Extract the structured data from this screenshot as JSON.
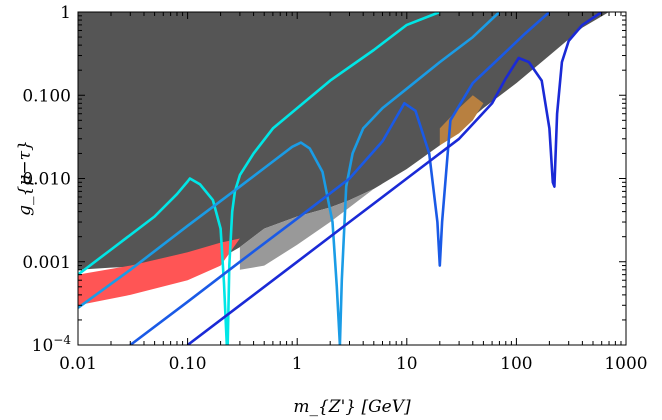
{
  "chart_data": {
    "type": "line",
    "title": "",
    "xlabel": "m_{Z'} [GeV]",
    "ylabel": "g_{μ−τ}",
    "x_scale": "log",
    "y_scale": "log",
    "xlim": [
      0.01,
      1000
    ],
    "ylim": [
      0.0001,
      1
    ],
    "x_ticks": [
      {
        "value": 0.01,
        "label": "0.01"
      },
      {
        "value": 0.1,
        "label": "0.10"
      },
      {
        "value": 1,
        "label": "1"
      },
      {
        "value": 10,
        "label": "10"
      },
      {
        "value": 100,
        "label": "100"
      },
      {
        "value": 1000,
        "label": "1000"
      }
    ],
    "y_ticks": [
      {
        "value": 0.0001,
        "label": "10^-4"
      },
      {
        "value": 0.001,
        "label": "0.001"
      },
      {
        "value": 0.01,
        "label": "0.010"
      },
      {
        "value": 0.1,
        "label": "0.100"
      },
      {
        "value": 1,
        "label": "1"
      }
    ],
    "grid": false,
    "regions": [
      {
        "color": "#555555",
        "x": [
          0.01,
          0.02,
          0.05,
          0.1,
          0.2,
          0.3,
          0.5,
          1,
          2,
          3,
          5,
          10,
          20,
          30,
          50,
          100,
          200,
          400,
          700,
          0.01
        ],
        "y": [
          0.0008,
          0.00085,
          0.0009,
          0.00095,
          0.0011,
          0.0015,
          0.0025,
          0.0035,
          0.0045,
          0.0055,
          0.0075,
          0.013,
          0.025,
          0.04,
          0.07,
          0.14,
          0.3,
          0.65,
          1,
          1
        ]
      },
      {
        "color": "#999999",
        "x": [
          0.3,
          0.5,
          1,
          2,
          3,
          5,
          3,
          2,
          1,
          0.5,
          0.3
        ],
        "y": [
          0.0015,
          0.0025,
          0.0035,
          0.0045,
          0.0055,
          0.0075,
          0.0045,
          0.003,
          0.0016,
          0.0009,
          0.0008
        ]
      },
      {
        "color": "#ff5555",
        "x": [
          0.01,
          0.03,
          0.1,
          0.2,
          0.3,
          0.2,
          0.1,
          0.03,
          0.01
        ],
        "y": [
          0.0007,
          0.0009,
          0.0013,
          0.0017,
          0.0019,
          0.0009,
          0.0006,
          0.0004,
          0.0003
        ]
      },
      {
        "color": "#b88040",
        "x": [
          20,
          30,
          40,
          50,
          40,
          30,
          20
        ],
        "y": [
          0.04,
          0.07,
          0.1,
          0.08,
          0.05,
          0.035,
          0.025
        ]
      }
    ],
    "series": [
      {
        "color": "#00e6e6",
        "type": "dip",
        "peak": [
          0.105,
          0.01
        ],
        "x": [
          0.01,
          0.02,
          0.05,
          0.08,
          0.1,
          0.105,
          0.13,
          0.17,
          0.2,
          0.215,
          0.228,
          0.232,
          0.24,
          0.255,
          0.27,
          0.3,
          0.4,
          0.6,
          1,
          2,
          5,
          10,
          20
        ],
        "y": [
          0.0007,
          0.0014,
          0.0035,
          0.0065,
          0.0092,
          0.01,
          0.0085,
          0.0055,
          0.0025,
          0.00055,
          0.0001,
          0.0001,
          0.0009,
          0.004,
          0.007,
          0.011,
          0.02,
          0.04,
          0.07,
          0.15,
          0.35,
          0.7,
          1
        ]
      },
      {
        "color": "#1a9ce6",
        "type": "dip",
        "peak": [
          1.08,
          0.027
        ],
        "x": [
          0.01,
          0.03,
          0.1,
          0.3,
          0.6,
          0.9,
          1.08,
          1.3,
          1.7,
          2.1,
          2.3,
          2.45,
          2.55,
          2.8,
          3.2,
          4,
          6,
          10,
          20,
          40,
          70
        ],
        "y": [
          0.00028,
          0.0008,
          0.0027,
          0.008,
          0.016,
          0.024,
          0.027,
          0.023,
          0.012,
          0.003,
          0.0005,
          0.0001,
          0.0006,
          0.008,
          0.02,
          0.04,
          0.07,
          0.12,
          0.25,
          0.5,
          1
        ]
      },
      {
        "color": "#1a5ae6",
        "type": "dip",
        "peak": [
          9.5,
          0.08
        ],
        "x": [
          0.03,
          0.1,
          0.3,
          1,
          3,
          6,
          9.5,
          12,
          16,
          19,
          20,
          21,
          25,
          40,
          70,
          120,
          200
        ],
        "y": [
          0.0001,
          0.00033,
          0.001,
          0.0033,
          0.01,
          0.028,
          0.08,
          0.065,
          0.02,
          0.003,
          0.0009,
          0.003,
          0.05,
          0.14,
          0.28,
          0.55,
          1
        ]
      },
      {
        "color": "#1a2ad6",
        "type": "dip",
        "peak": [
          105,
          0.28
        ],
        "x": [
          0.1,
          0.3,
          1,
          3,
          10,
          30,
          60,
          80,
          105,
          130,
          170,
          200,
          215,
          222,
          235,
          260,
          300,
          400,
          600
        ],
        "y": [
          0.0001,
          0.0003,
          0.001,
          0.003,
          0.01,
          0.03,
          0.08,
          0.16,
          0.28,
          0.25,
          0.15,
          0.04,
          0.009,
          0.008,
          0.06,
          0.25,
          0.45,
          0.7,
          1
        ]
      }
    ]
  }
}
